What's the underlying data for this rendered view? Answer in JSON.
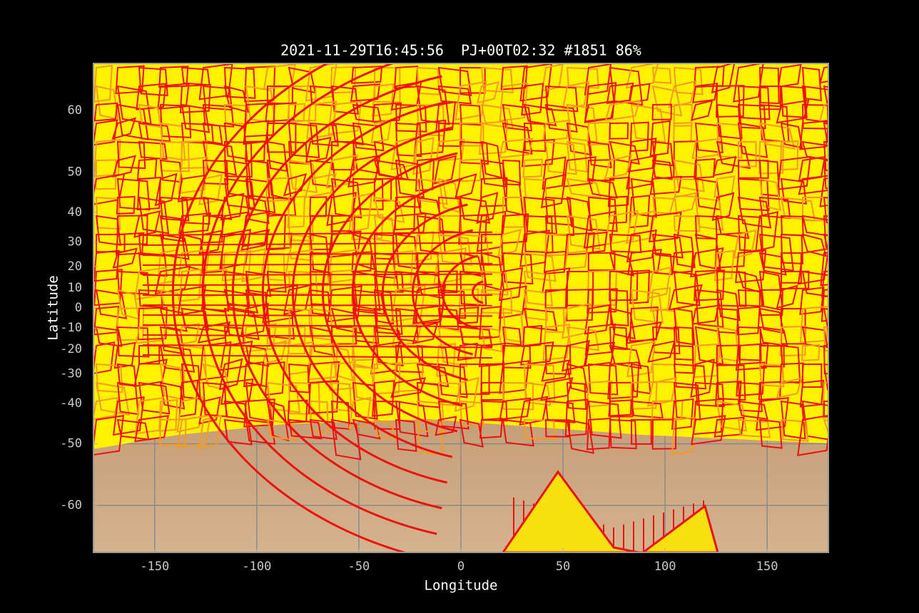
{
  "chart_data": {
    "type": "footprint-map",
    "title": "2021-11-29T16:45:56  PJ+00T02:32 #1851 86%",
    "xlabel": "Longitude",
    "ylabel": "Latitude",
    "xlim": [
      -180,
      180
    ],
    "xticks": [
      -150,
      -100,
      -50,
      0,
      50,
      100,
      150
    ],
    "ylim": [
      -65,
      65
    ],
    "yscale": "tan",
    "yticks": [
      60,
      50,
      40,
      30,
      20,
      10,
      0,
      -10,
      -20,
      -30,
      -40,
      -50,
      -60
    ],
    "grid": true
  }
}
